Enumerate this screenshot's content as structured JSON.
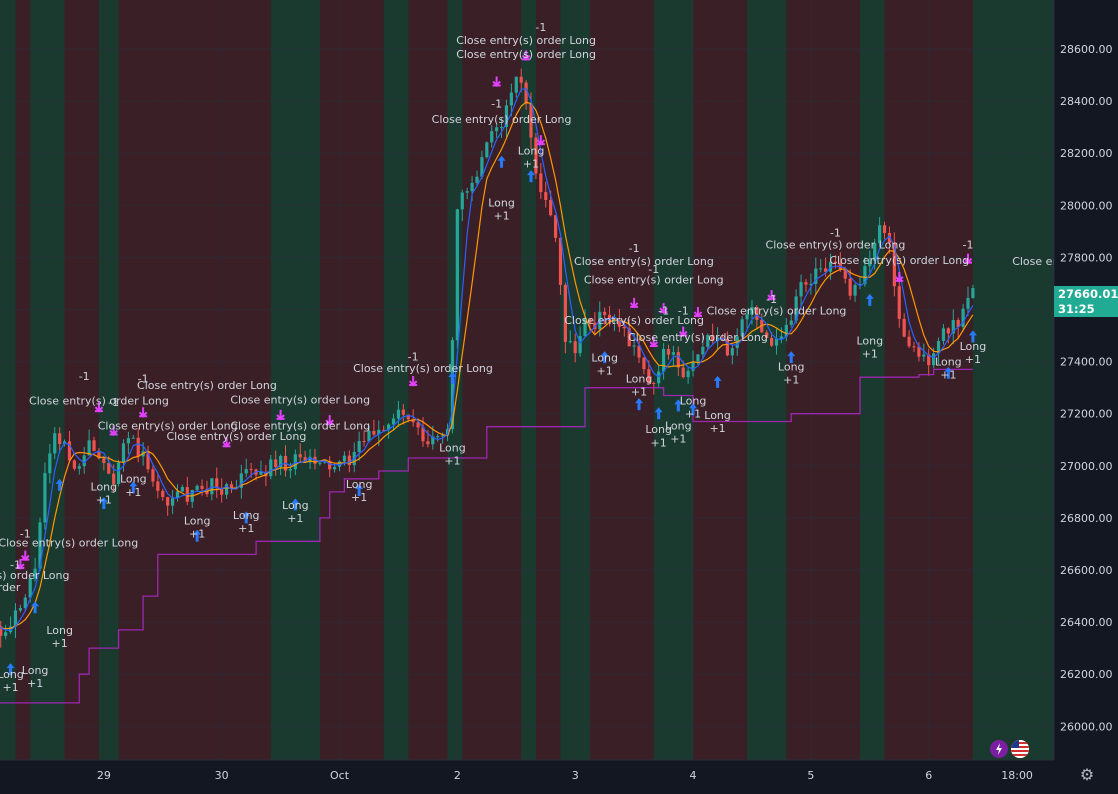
{
  "chart_data": {
    "type": "candlestick",
    "instrument_price_axis": {
      "ticks": [
        "28600.00",
        "28400.00",
        "28200.00",
        "28000.00",
        "27800.00",
        "27600.00",
        "27400.00",
        "27200.00",
        "27000.00",
        "26800.00",
        "26600.00",
        "26400.00",
        "26200.00",
        "26000.00"
      ],
      "tick_values": [
        28600,
        28400,
        28200,
        28000,
        27800,
        27600,
        27400,
        27200,
        27000,
        26800,
        26600,
        26400,
        26200,
        26000
      ],
      "range": [
        25870,
        28780
      ]
    },
    "time_axis": {
      "ticks": [
        "29",
        "30",
        "Oct",
        "2",
        "3",
        "4",
        "5",
        "6",
        "18:00"
      ],
      "tick_hours": [
        24,
        48,
        72,
        96,
        120,
        144,
        168,
        192,
        210
      ]
    },
    "last_price": "27660.01",
    "countdown": "31:25",
    "price_control_points": [
      [
        0,
        26420
      ],
      [
        4,
        26350
      ],
      [
        8,
        26480
      ],
      [
        10,
        26620
      ],
      [
        12,
        26950
      ],
      [
        14,
        27100
      ],
      [
        16,
        27080
      ],
      [
        18,
        26980
      ],
      [
        20,
        27070
      ],
      [
        22,
        27080
      ],
      [
        24,
        27020
      ],
      [
        26,
        26960
      ],
      [
        28,
        27090
      ],
      [
        30,
        27080
      ],
      [
        32,
        27030
      ],
      [
        34,
        26930
      ],
      [
        36,
        26880
      ],
      [
        38,
        26860
      ],
      [
        40,
        26900
      ],
      [
        42,
        26880
      ],
      [
        44,
        26910
      ],
      [
        46,
        26930
      ],
      [
        48,
        26900
      ],
      [
        50,
        26930
      ],
      [
        52,
        26950
      ],
      [
        54,
        26980
      ],
      [
        56,
        26960
      ],
      [
        58,
        27010
      ],
      [
        60,
        27020
      ],
      [
        62,
        27000
      ],
      [
        64,
        27030
      ],
      [
        66,
        27010
      ],
      [
        68,
        27000
      ],
      [
        70,
        27000
      ],
      [
        72,
        26990
      ],
      [
        74,
        27030
      ],
      [
        76,
        27070
      ],
      [
        78,
        27110
      ],
      [
        80,
        27150
      ],
      [
        82,
        27160
      ],
      [
        84,
        27200
      ],
      [
        86,
        27180
      ],
      [
        88,
        27120
      ],
      [
        90,
        27080
      ],
      [
        92,
        27110
      ],
      [
        94,
        27150
      ],
      [
        95,
        27500
      ],
      [
        96,
        28000
      ],
      [
        98,
        28050
      ],
      [
        100,
        28100
      ],
      [
        102,
        28220
      ],
      [
        104,
        28300
      ],
      [
        106,
        28360
      ],
      [
        108,
        28500
      ],
      [
        110,
        28400
      ],
      [
        112,
        28150
      ],
      [
        114,
        28000
      ],
      [
        116,
        27900
      ],
      [
        118,
        27500
      ],
      [
        120,
        27450
      ],
      [
        122,
        27550
      ],
      [
        124,
        27550
      ],
      [
        126,
        27580
      ],
      [
        128,
        27570
      ],
      [
        130,
        27500
      ],
      [
        132,
        27450
      ],
      [
        134,
        27350
      ],
      [
        136,
        27300
      ],
      [
        138,
        27430
      ],
      [
        140,
        27450
      ],
      [
        142,
        27340
      ],
      [
        144,
        27380
      ],
      [
        146,
        27450
      ],
      [
        148,
        27500
      ],
      [
        150,
        27470
      ],
      [
        152,
        27430
      ],
      [
        154,
        27550
      ],
      [
        156,
        27600
      ],
      [
        158,
        27540
      ],
      [
        160,
        27480
      ],
      [
        162,
        27500
      ],
      [
        164,
        27580
      ],
      [
        166,
        27700
      ],
      [
        168,
        27720
      ],
      [
        170,
        27780
      ],
      [
        172,
        27760
      ],
      [
        174,
        27740
      ],
      [
        176,
        27680
      ],
      [
        178,
        27720
      ],
      [
        180,
        27800
      ],
      [
        182,
        27900
      ],
      [
        184,
        27870
      ],
      [
        186,
        27550
      ],
      [
        188,
        27450
      ],
      [
        190,
        27430
      ],
      [
        192,
        27410
      ],
      [
        194,
        27490
      ],
      [
        196,
        27520
      ],
      [
        198,
        27540
      ],
      [
        200,
        27620
      ],
      [
        201,
        27660
      ]
    ],
    "stop_line_steps": [
      [
        0,
        26090
      ],
      [
        19,
        26090
      ],
      [
        19,
        26200
      ],
      [
        21,
        26200
      ],
      [
        21,
        26300
      ],
      [
        27,
        26300
      ],
      [
        27,
        26370
      ],
      [
        32,
        26370
      ],
      [
        32,
        26500
      ],
      [
        35,
        26500
      ],
      [
        35,
        26660
      ],
      [
        55,
        26660
      ],
      [
        55,
        26710
      ],
      [
        68,
        26710
      ],
      [
        68,
        26800
      ],
      [
        70,
        26800
      ],
      [
        70,
        26900
      ],
      [
        73,
        26900
      ],
      [
        73,
        26950
      ],
      [
        80,
        26950
      ],
      [
        80,
        26980
      ],
      [
        86,
        26980
      ],
      [
        86,
        27030
      ],
      [
        102,
        27030
      ],
      [
        102,
        27150
      ],
      [
        122,
        27150
      ],
      [
        122,
        27300
      ],
      [
        138,
        27300
      ],
      [
        138,
        27270
      ],
      [
        144,
        27270
      ],
      [
        144,
        27170
      ],
      [
        164,
        27170
      ],
      [
        164,
        27200
      ],
      [
        178,
        27200
      ],
      [
        178,
        27340
      ],
      [
        190,
        27340
      ],
      [
        190,
        27350
      ],
      [
        193,
        27350
      ],
      [
        193,
        27370
      ],
      [
        201,
        27370
      ]
    ],
    "annotations": [
      {
        "t": "Close entry(s) order Long",
        "h": 31,
        "p": 26690,
        "a": "end"
      },
      {
        "t": "-1",
        "h": 8,
        "p": 26725,
        "a": "middle"
      },
      {
        "t": "Close entry(s) order Long",
        "h": 17,
        "p": 26565,
        "a": "end"
      },
      {
        "t": "-1",
        "h": 6,
        "p": 26605,
        "a": "middle"
      },
      {
        "t": "s) order",
        "h": 7,
        "p": 26520,
        "a": "end"
      },
      {
        "t": "Long",
        "h": 5,
        "p": 26185,
        "a": "middle"
      },
      {
        "t": "+1",
        "h": 5,
        "p": 26135,
        "a": "middle"
      },
      {
        "t": "Long",
        "h": 10,
        "p": 26200,
        "a": "middle"
      },
      {
        "t": "+1",
        "h": 10,
        "p": 26150,
        "a": "middle"
      },
      {
        "t": "Long",
        "h": 15,
        "p": 26355,
        "a": "middle"
      },
      {
        "t": "+1",
        "h": 15,
        "p": 26305,
        "a": "middle"
      },
      {
        "t": "Close entry(s) order Long",
        "h": 23,
        "p": 27235,
        "a": "middle"
      },
      {
        "t": "Close entry(s) order Long",
        "h": 45,
        "p": 27295,
        "a": "middle"
      },
      {
        "t": "-1",
        "h": 20,
        "p": 27330,
        "a": "middle"
      },
      {
        "t": "-1",
        "h": 32,
        "p": 27320,
        "a": "middle"
      },
      {
        "t": "-1",
        "h": 26,
        "p": 27230,
        "a": "middle"
      },
      {
        "t": "Close entry(s) order Long",
        "h": 37,
        "p": 27140,
        "a": "middle"
      },
      {
        "t": "Close entry(s) order Long",
        "h": 51,
        "p": 27100,
        "a": "middle"
      },
      {
        "t": "Close entry(s) order Long",
        "h": 64,
        "p": 27140,
        "a": "middle"
      },
      {
        "t": "Close entry(s) order Long",
        "h": 64,
        "p": 27240,
        "a": "middle"
      },
      {
        "t": "Close entry(s) order Long",
        "h": 89,
        "p": 27360,
        "a": "middle"
      },
      {
        "t": "-1",
        "h": 87,
        "p": 27405,
        "a": "middle"
      },
      {
        "t": "Long",
        "h": 24,
        "p": 26905,
        "a": "middle"
      },
      {
        "t": "+1",
        "h": 24,
        "p": 26855,
        "a": "middle"
      },
      {
        "t": "Long",
        "h": 30,
        "p": 26935,
        "a": "middle"
      },
      {
        "t": "+1",
        "h": 30,
        "p": 26885,
        "a": "middle"
      },
      {
        "t": "Long",
        "h": 43,
        "p": 26775,
        "a": "middle"
      },
      {
        "t": "+1",
        "h": 43,
        "p": 26725,
        "a": "middle"
      },
      {
        "t": "Long",
        "h": 53,
        "p": 26795,
        "a": "middle"
      },
      {
        "t": "+1",
        "h": 53,
        "p": 26745,
        "a": "middle"
      },
      {
        "t": "Long",
        "h": 63,
        "p": 26835,
        "a": "middle"
      },
      {
        "t": "+1",
        "h": 63,
        "p": 26785,
        "a": "middle"
      },
      {
        "t": "Long",
        "h": 76,
        "p": 26915,
        "a": "middle"
      },
      {
        "t": "+1",
        "h": 76,
        "p": 26865,
        "a": "middle"
      },
      {
        "t": "Long",
        "h": 95,
        "p": 27055,
        "a": "middle"
      },
      {
        "t": "+1",
        "h": 95,
        "p": 27005,
        "a": "middle"
      },
      {
        "t": "Close entry(s) order Long",
        "h": 110,
        "p": 28620,
        "a": "middle"
      },
      {
        "t": "Close entry(s) order Long",
        "h": 110,
        "p": 28565,
        "a": "middle"
      },
      {
        "t": "-1",
        "h": 113,
        "p": 28670,
        "a": "middle"
      },
      {
        "t": "Close entry(s) order Long",
        "h": 105,
        "p": 28315,
        "a": "middle"
      },
      {
        "t": "-1",
        "h": 104,
        "p": 28375,
        "a": "middle"
      },
      {
        "t": "Long",
        "h": 105,
        "p": 27995,
        "a": "middle"
      },
      {
        "t": "+1",
        "h": 105,
        "p": 27945,
        "a": "middle"
      },
      {
        "t": "Long",
        "h": 111,
        "p": 28195,
        "a": "middle"
      },
      {
        "t": "+1",
        "h": 111,
        "p": 28145,
        "a": "middle"
      },
      {
        "t": "Close entry(s) order Long",
        "h": 134,
        "p": 27770,
        "a": "middle"
      },
      {
        "t": "-1",
        "h": 132,
        "p": 27820,
        "a": "middle"
      },
      {
        "t": "Close entry(s) order Long",
        "h": 136,
        "p": 27700,
        "a": "middle"
      },
      {
        "t": "-1",
        "h": 136,
        "p": 27740,
        "a": "middle"
      },
      {
        "t": "-1",
        "h": 138,
        "p": 27580,
        "a": "middle"
      },
      {
        "t": "-1",
        "h": 142,
        "p": 27580,
        "a": "middle"
      },
      {
        "t": "Close entry(s) order Long",
        "h": 132,
        "p": 27545,
        "a": "middle"
      },
      {
        "t": "Close entry(s) order Long",
        "h": 161,
        "p": 27580,
        "a": "middle"
      },
      {
        "t": "Close entry(s) order Long",
        "h": 145,
        "p": 27480,
        "a": "middle"
      },
      {
        "t": "Long",
        "h": 126,
        "p": 27400,
        "a": "middle"
      },
      {
        "t": "+1",
        "h": 126,
        "p": 27350,
        "a": "middle"
      },
      {
        "t": "Long",
        "h": 133,
        "p": 27320,
        "a": "middle"
      },
      {
        "t": "+1",
        "h": 133,
        "p": 27270,
        "a": "middle"
      },
      {
        "t": "Long",
        "h": 137,
        "p": 27125,
        "a": "middle"
      },
      {
        "t": "+1",
        "h": 137,
        "p": 27075,
        "a": "middle"
      },
      {
        "t": "Long",
        "h": 141,
        "p": 27140,
        "a": "middle"
      },
      {
        "t": "+1",
        "h": 141,
        "p": 27090,
        "a": "middle"
      },
      {
        "t": "Long",
        "h": 144,
        "p": 27235,
        "a": "middle"
      },
      {
        "t": "+1",
        "h": 144,
        "p": 27185,
        "a": "middle"
      },
      {
        "t": "Long",
        "h": 149,
        "p": 27180,
        "a": "middle"
      },
      {
        "t": "+1",
        "h": 149,
        "p": 27130,
        "a": "middle"
      },
      {
        "t": "Long",
        "h": 164,
        "p": 27365,
        "a": "middle"
      },
      {
        "t": "+1",
        "h": 164,
        "p": 27315,
        "a": "middle"
      },
      {
        "t": "-1",
        "h": 160,
        "p": 27625,
        "a": "middle"
      },
      {
        "t": "Close entry(s) order Long",
        "h": 173,
        "p": 27835,
        "a": "middle"
      },
      {
        "t": "-1",
        "h": 173,
        "p": 27880,
        "a": "middle"
      },
      {
        "t": "Close entry(s) order Long",
        "h": 186,
        "p": 27775,
        "a": "middle"
      },
      {
        "t": "Close entry(s) order Long",
        "h": 209,
        "p": 27770,
        "a": "start"
      },
      {
        "t": "-1",
        "h": 200,
        "p": 27835,
        "a": "middle"
      },
      {
        "t": "Long",
        "h": 180,
        "p": 27465,
        "a": "middle"
      },
      {
        "t": "+1",
        "h": 180,
        "p": 27415,
        "a": "middle"
      },
      {
        "t": "Long",
        "h": 196,
        "p": 27385,
        "a": "middle"
      },
      {
        "t": "+1",
        "h": 196,
        "p": 27335,
        "a": "middle"
      },
      {
        "t": "Long",
        "h": 201,
        "p": 27445,
        "a": "middle"
      },
      {
        "t": "+1",
        "h": 201,
        "p": 27395,
        "a": "middle"
      }
    ],
    "entry_arrows_up": [
      5,
      10,
      15,
      24,
      30,
      43,
      53,
      63,
      76,
      95,
      105,
      111,
      126,
      133,
      137,
      141,
      144,
      149,
      164,
      180,
      196,
      201
    ],
    "exit_arrows_down": [
      7,
      8,
      23,
      26,
      32,
      49,
      60,
      70,
      87,
      104,
      110,
      113,
      132,
      136,
      138,
      142,
      145,
      160,
      186,
      200
    ],
    "colors": {
      "bull": "#26a69a",
      "bear": "#ef5350",
      "stop_line": "#9c27b0",
      "ma_fast": "#2962ff",
      "ma_slow": "#ff9800",
      "entry_arrow": "#2979ff",
      "exit_marker": "#e040fb",
      "last_price": "#22ab94",
      "band_green": "#1b3a2f",
      "band_red": "#3a1f26"
    }
  }
}
